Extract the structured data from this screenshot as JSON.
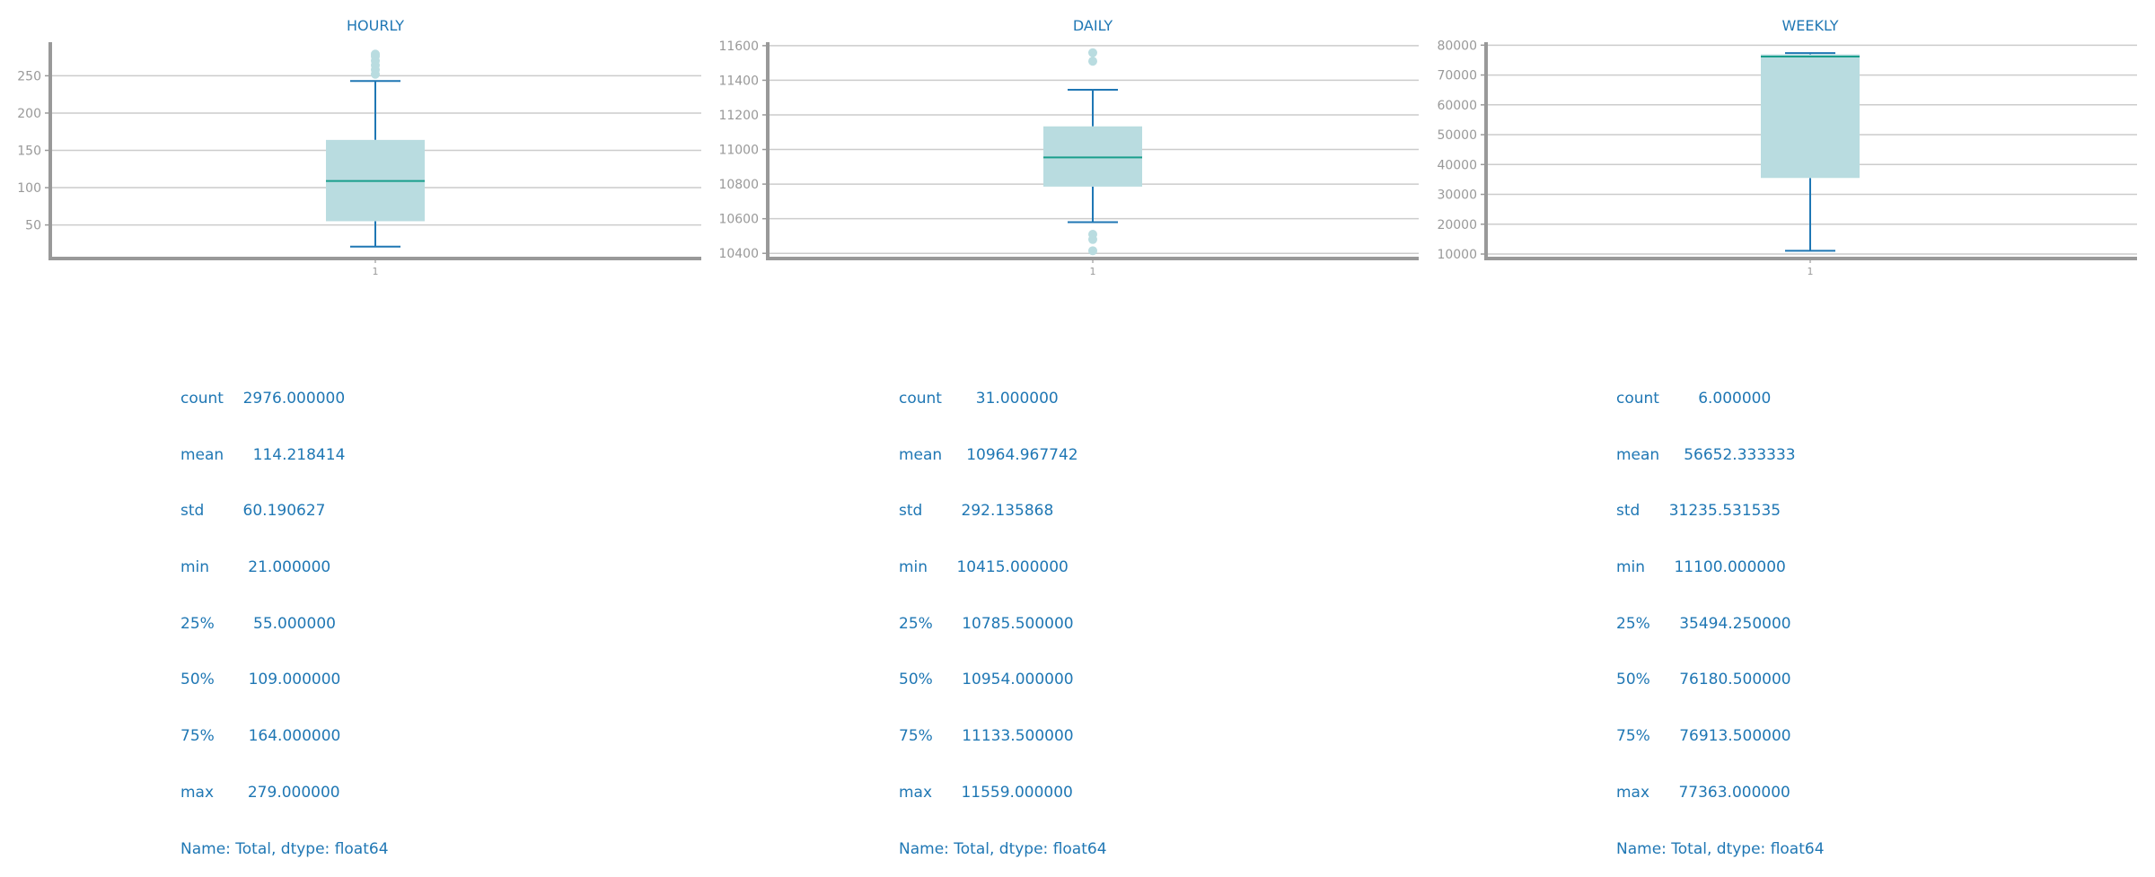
{
  "colors": {
    "box_fill": "#b9dce0",
    "whisker": "#1f77b4",
    "median": "#1a9e8c",
    "outlier": "#b9dce0",
    "axis": "#999999",
    "grid": "#cccccc",
    "title": "#1f77b4",
    "tick": "#999999"
  },
  "chart_data": [
    {
      "type": "box",
      "title": "HOURLY",
      "categories": [
        "1"
      ],
      "ylim": [
        5,
        295
      ],
      "yticks": [
        50,
        100,
        150,
        200,
        250
      ],
      "grid": true,
      "box": {
        "whisker_low": 21,
        "q1": 55,
        "median": 109,
        "q3": 164,
        "whisker_high": 243
      },
      "outliers": [
        252,
        258,
        264,
        270,
        276,
        279
      ]
    },
    {
      "type": "box",
      "title": "DAILY",
      "categories": [
        "1"
      ],
      "ylim": [
        10370,
        11620
      ],
      "yticks": [
        10400,
        10600,
        10800,
        11000,
        11200,
        11400,
        11600
      ],
      "grid": true,
      "box": {
        "whisker_low": 10580,
        "q1": 10785.5,
        "median": 10954,
        "q3": 11133.5,
        "whisker_high": 11345
      },
      "outliers": [
        10415,
        10480,
        10510,
        11510,
        11559
      ]
    },
    {
      "type": "box",
      "title": "WEEKLY",
      "categories": [
        "1"
      ],
      "ylim": [
        8500,
        81000
      ],
      "yticks": [
        10000,
        20000,
        30000,
        40000,
        50000,
        60000,
        70000,
        80000
      ],
      "grid": true,
      "box": {
        "whisker_low": 11100,
        "q1": 35494.25,
        "median": 76180.5,
        "q3": 76913.5,
        "whisker_high": 77363
      },
      "outliers": []
    }
  ],
  "stats": [
    {
      "lines": [
        "count    2976.000000",
        "mean      114.218414",
        "std        60.190627",
        "min        21.000000",
        "25%        55.000000",
        "50%       109.000000",
        "75%       164.000000",
        "max       279.000000",
        "Name: Total, dtype: float64"
      ]
    },
    {
      "lines": [
        "count       31.000000",
        "mean     10964.967742",
        "std        292.135868",
        "min      10415.000000",
        "25%      10785.500000",
        "50%      10954.000000",
        "75%      11133.500000",
        "max      11559.000000",
        "Name: Total, dtype: float64"
      ]
    },
    {
      "lines": [
        "count        6.000000",
        "mean     56652.333333",
        "std      31235.531535",
        "min      11100.000000",
        "25%      35494.250000",
        "50%      76180.500000",
        "75%      76913.500000",
        "max      77363.000000",
        "Name: Total, dtype: float64"
      ]
    }
  ]
}
